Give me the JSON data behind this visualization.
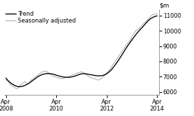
{
  "ylim": [
    5800,
    11400
  ],
  "yticks": [
    6000,
    7000,
    8000,
    9000,
    10000,
    11000
  ],
  "ytick_labels": [
    "6000",
    "7000",
    "8000",
    "9000",
    "10000",
    "11000"
  ],
  "xlabel_ticks": [
    "Apr\n2008",
    "Apr\n2010",
    "Apr\n2012",
    "Apr\n2014"
  ],
  "xtick_positions": [
    0,
    24,
    48,
    72
  ],
  "trend_color": "#000000",
  "seasonal_color": "#b0b0b0",
  "legend_items": [
    "Trend",
    "Seasonally adjusted"
  ],
  "background_color": "#ffffff",
  "trend_linewidth": 1.0,
  "seasonal_linewidth": 0.8,
  "xlim": [
    -1,
    73
  ],
  "months": [
    0,
    1,
    2,
    3,
    4,
    5,
    6,
    7,
    8,
    9,
    10,
    11,
    12,
    13,
    14,
    15,
    16,
    17,
    18,
    19,
    20,
    21,
    22,
    23,
    24,
    25,
    26,
    27,
    28,
    29,
    30,
    31,
    32,
    33,
    34,
    35,
    36,
    37,
    38,
    39,
    40,
    41,
    42,
    43,
    44,
    45,
    46,
    47,
    48,
    49,
    50,
    51,
    52,
    53,
    54,
    55,
    56,
    57,
    58,
    59,
    60,
    61,
    62,
    63,
    64,
    65,
    66,
    67,
    68,
    69,
    70,
    71,
    72
  ],
  "trend": [
    6900,
    6750,
    6620,
    6520,
    6440,
    6380,
    6360,
    6360,
    6380,
    6430,
    6500,
    6580,
    6680,
    6780,
    6880,
    6980,
    7060,
    7130,
    7170,
    7200,
    7210,
    7200,
    7180,
    7150,
    7100,
    7060,
    7020,
    6990,
    6970,
    6960,
    6960,
    6980,
    7010,
    7050,
    7100,
    7150,
    7190,
    7200,
    7190,
    7170,
    7140,
    7120,
    7090,
    7070,
    7060,
    7060,
    7080,
    7120,
    7190,
    7290,
    7420,
    7580,
    7760,
    7950,
    8150,
    8360,
    8580,
    8800,
    9010,
    9200,
    9390,
    9580,
    9760,
    9930,
    10080,
    10220,
    10380,
    10540,
    10680,
    10790,
    10870,
    10930,
    10970
  ],
  "seasonal": [
    6800,
    6700,
    6500,
    6400,
    6300,
    6220,
    6280,
    6480,
    6580,
    6680,
    6530,
    6570,
    6780,
    6880,
    6980,
    7080,
    7200,
    7300,
    7350,
    7380,
    7280,
    7180,
    7080,
    7020,
    6960,
    6920,
    6870,
    6870,
    6920,
    6970,
    7030,
    7080,
    7130,
    7180,
    7230,
    7280,
    7320,
    7270,
    7170,
    7070,
    6970,
    6920,
    6870,
    6830,
    6780,
    6840,
    6940,
    7090,
    7240,
    7390,
    7590,
    7790,
    7990,
    8190,
    8390,
    8590,
    8790,
    8990,
    9190,
    9340,
    9590,
    9820,
    10020,
    10110,
    10210,
    10380,
    10530,
    10640,
    10790,
    10950,
    11050,
    11080,
    11120
  ]
}
